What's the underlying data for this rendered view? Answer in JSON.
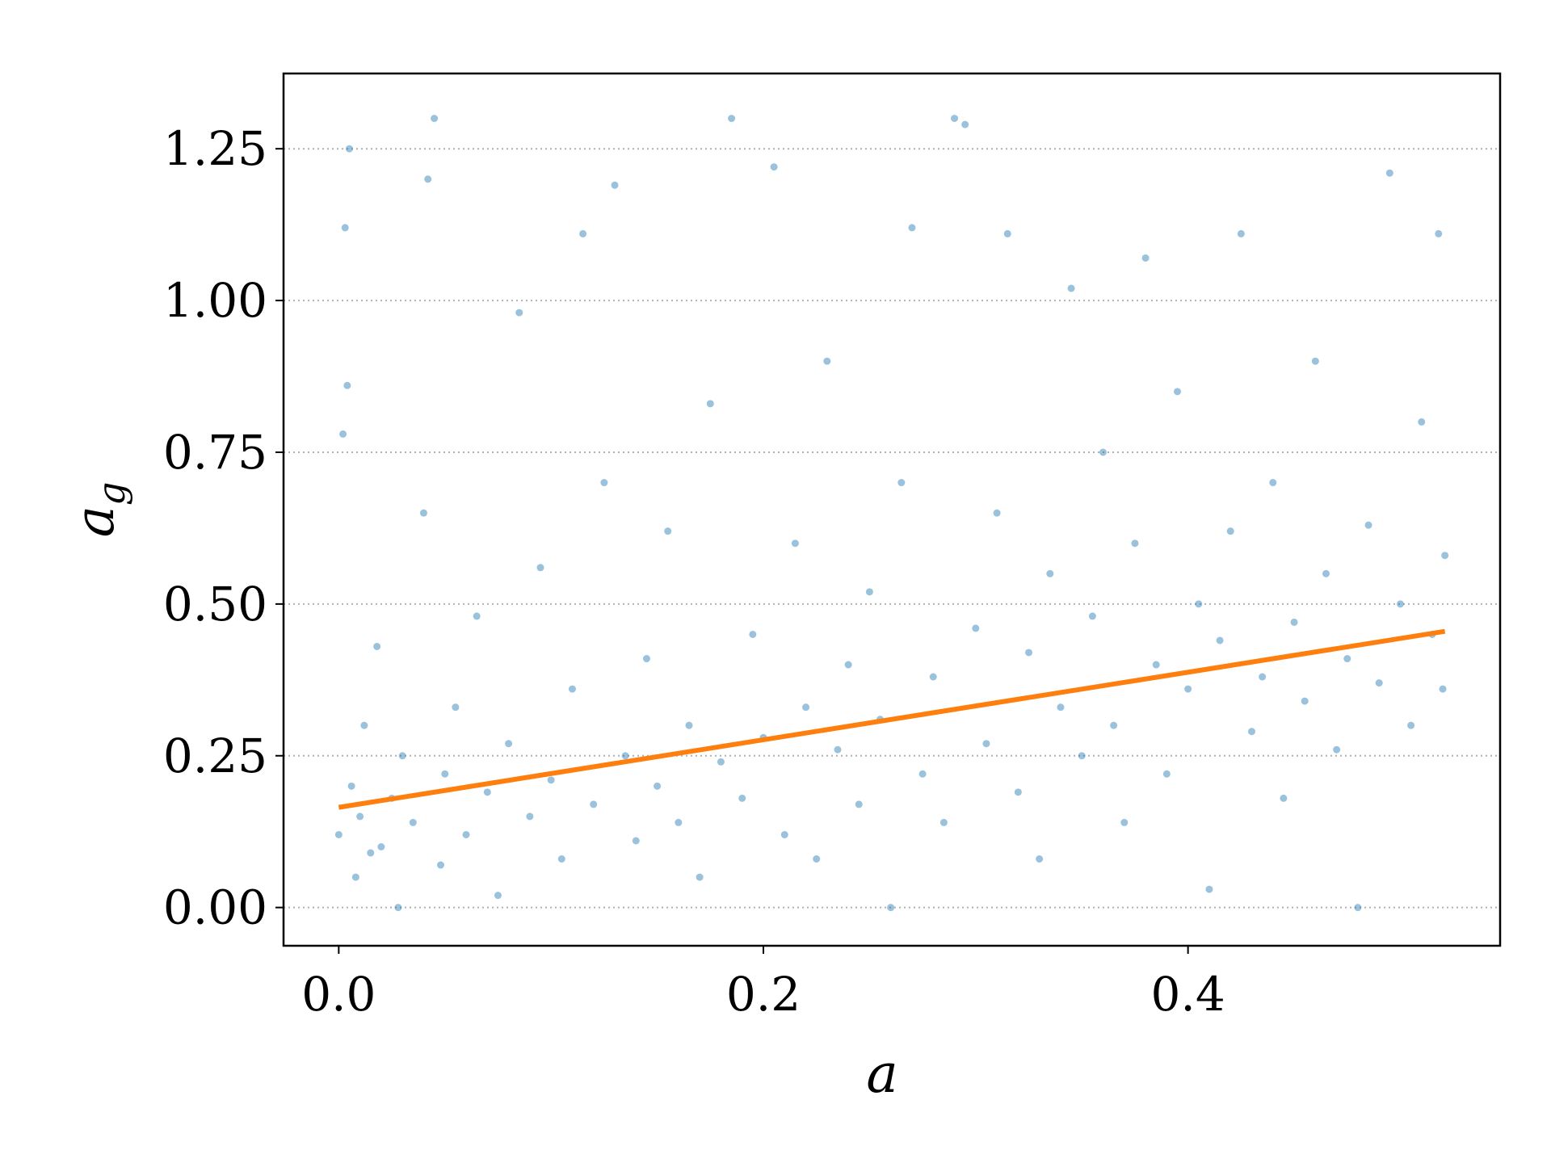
{
  "chart_data": {
    "type": "scatter",
    "xlabel": "a",
    "ylabel": {
      "text": "a",
      "subscript": "g"
    },
    "xlim": [
      -0.026,
      0.547
    ],
    "ylim": [
      -0.063,
      1.374
    ],
    "xticks": [
      {
        "value": 0,
        "label": "0.0"
      },
      {
        "value": 0.2,
        "label": "0.2"
      },
      {
        "value": 0.4,
        "label": "0.4"
      }
    ],
    "yticks": [
      {
        "value": 0,
        "label": "0.00"
      },
      {
        "value": 0.25,
        "label": "0.25"
      },
      {
        "value": 0.5,
        "label": "0.50"
      },
      {
        "value": 0.75,
        "label": "0.75"
      },
      {
        "value": 1,
        "label": "1.00"
      },
      {
        "value": 1.25,
        "label": "1.25"
      }
    ],
    "grid": "y",
    "series": [
      {
        "kind": "points",
        "color": "#1f77b4",
        "x": [
          0.0,
          0.002,
          0.003,
          0.005,
          0.004,
          0.006,
          0.008,
          0.01,
          0.012,
          0.015,
          0.018,
          0.02,
          0.025,
          0.028,
          0.03,
          0.035,
          0.04,
          0.042,
          0.045,
          0.048,
          0.05,
          0.055,
          0.06,
          0.065,
          0.07,
          0.075,
          0.08,
          0.085,
          0.09,
          0.095,
          0.1,
          0.105,
          0.11,
          0.115,
          0.12,
          0.125,
          0.13,
          0.135,
          0.14,
          0.145,
          0.15,
          0.155,
          0.16,
          0.165,
          0.17,
          0.175,
          0.18,
          0.185,
          0.19,
          0.195,
          0.2,
          0.205,
          0.21,
          0.215,
          0.22,
          0.225,
          0.23,
          0.235,
          0.24,
          0.245,
          0.25,
          0.255,
          0.26,
          0.265,
          0.27,
          0.275,
          0.28,
          0.285,
          0.29,
          0.295,
          0.3,
          0.305,
          0.31,
          0.315,
          0.32,
          0.325,
          0.33,
          0.335,
          0.34,
          0.345,
          0.35,
          0.355,
          0.36,
          0.365,
          0.37,
          0.375,
          0.38,
          0.385,
          0.39,
          0.395,
          0.4,
          0.405,
          0.41,
          0.415,
          0.42,
          0.425,
          0.43,
          0.435,
          0.44,
          0.445,
          0.45,
          0.455,
          0.46,
          0.465,
          0.47,
          0.475,
          0.48,
          0.485,
          0.49,
          0.495,
          0.5,
          0.505,
          0.51,
          0.515,
          0.518,
          0.52,
          0.521
        ],
        "y": [
          0.12,
          0.78,
          1.12,
          1.25,
          0.86,
          0.2,
          0.05,
          0.15,
          0.3,
          0.09,
          0.43,
          0.1,
          0.18,
          0.0,
          0.25,
          0.14,
          0.65,
          1.2,
          1.3,
          0.07,
          0.22,
          0.33,
          0.12,
          0.48,
          0.19,
          0.02,
          0.27,
          0.98,
          0.15,
          0.56,
          0.21,
          0.08,
          0.36,
          1.11,
          0.17,
          0.7,
          1.19,
          0.25,
          0.11,
          0.41,
          0.2,
          0.62,
          0.14,
          0.3,
          0.05,
          0.83,
          0.24,
          1.3,
          0.18,
          0.45,
          0.28,
          1.22,
          0.12,
          0.6,
          0.33,
          0.08,
          0.9,
          0.26,
          0.4,
          0.17,
          0.52,
          0.31,
          0.0,
          0.7,
          1.12,
          0.22,
          0.38,
          0.14,
          1.3,
          1.29,
          0.46,
          0.27,
          0.65,
          1.11,
          0.19,
          0.42,
          0.08,
          0.55,
          0.33,
          1.02,
          0.25,
          0.48,
          0.75,
          0.3,
          0.14,
          0.6,
          1.07,
          0.4,
          0.22,
          0.85,
          0.36,
          0.5,
          0.03,
          0.44,
          0.62,
          1.11,
          0.29,
          0.38,
          0.7,
          0.18,
          0.47,
          0.34,
          0.9,
          0.55,
          0.26,
          0.41,
          0.0,
          0.63,
          0.37,
          1.21,
          0.5,
          0.3,
          0.8,
          0.45,
          1.11,
          0.36,
          0.58
        ]
      },
      {
        "kind": "line",
        "color": "#ff7f0e",
        "x": [
          0,
          0.521
        ],
        "y": [
          0.165,
          0.455
        ]
      }
    ]
  }
}
